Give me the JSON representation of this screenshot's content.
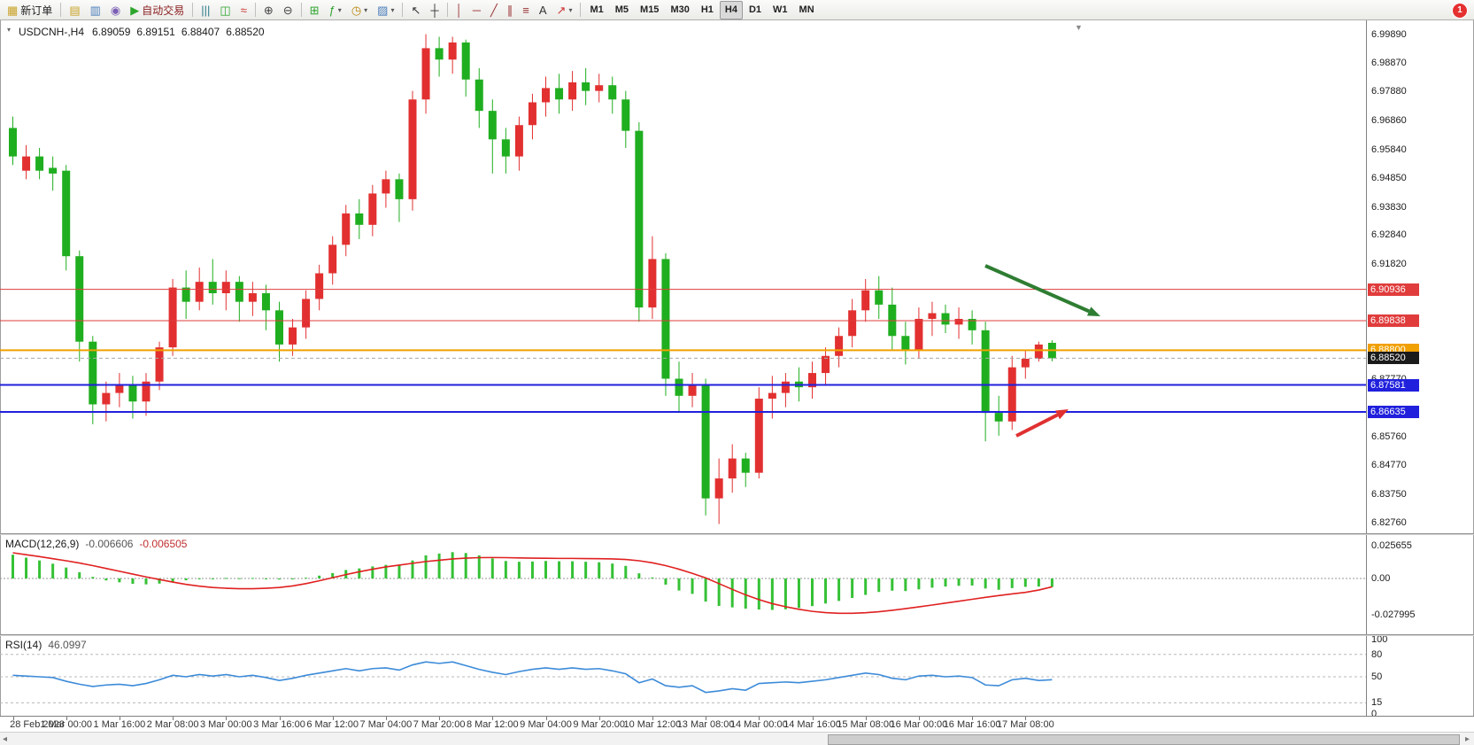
{
  "toolbar": {
    "items": [
      {
        "name": "new-order-button",
        "icon": "new-order-icon",
        "label": "新订单"
      },
      {
        "sep": true
      },
      {
        "name": "layouts-button",
        "icon": "layouts-icon"
      },
      {
        "name": "data-window-button",
        "icon": "data-window-icon"
      },
      {
        "name": "help-button",
        "icon": "help-icon"
      },
      {
        "name": "autotrading-button",
        "icon": "play-icon",
        "label": "自动交易",
        "label_color": "#8b2020"
      },
      {
        "sep": true
      },
      {
        "name": "bars-chart-button",
        "icon": "bars-chart-icon"
      },
      {
        "name": "candlestick-chart-button",
        "icon": "candlestick-chart-icon"
      },
      {
        "name": "line-chart-button",
        "icon": "line-chart-icon"
      },
      {
        "sep": true
      },
      {
        "name": "zoom-in-button",
        "icon": "zoom-in-icon"
      },
      {
        "name": "zoom-out-button",
        "icon": "zoom-out-icon"
      },
      {
        "sep": true
      },
      {
        "name": "tile-windows-button",
        "icon": "tile-windows-icon"
      },
      {
        "name": "indicators-button",
        "icon": "indicators-icon",
        "caret": true
      },
      {
        "name": "periods-button",
        "icon": "clock-icon",
        "caret": true
      },
      {
        "name": "templates-button",
        "icon": "template-icon",
        "caret": true
      },
      {
        "sep": true
      },
      {
        "name": "cursor-button",
        "icon": "cursor-icon"
      },
      {
        "name": "crosshair-button",
        "icon": "crosshair-icon"
      },
      {
        "sep": true
      },
      {
        "name": "vertical-line-button",
        "icon": "vertical-line-icon"
      },
      {
        "name": "horizontal-line-button",
        "icon": "horizontal-line-icon"
      },
      {
        "name": "trendline-button",
        "icon": "trendline-icon"
      },
      {
        "name": "channel-button",
        "icon": "channel-icon"
      },
      {
        "name": "fibonacci-button",
        "icon": "fibonacci-icon"
      },
      {
        "name": "text-button",
        "icon": "text-icon"
      },
      {
        "name": "arrows-button",
        "icon": "arrows-icon",
        "caret": true
      },
      {
        "sep": true
      },
      {
        "name": "timeframe-m1-button",
        "label": "M1",
        "tf": true
      },
      {
        "name": "timeframe-m5-button",
        "label": "M5",
        "tf": true
      },
      {
        "name": "timeframe-m15-button",
        "label": "M15",
        "tf": true
      },
      {
        "name": "timeframe-m30-button",
        "label": "M30",
        "tf": true
      },
      {
        "name": "timeframe-h1-button",
        "label": "H1",
        "tf": true
      },
      {
        "name": "timeframe-h4-button",
        "label": "H4",
        "tf": true,
        "active": true
      },
      {
        "name": "timeframe-d1-button",
        "label": "D1",
        "tf": true
      },
      {
        "name": "timeframe-w1-button",
        "label": "W1",
        "tf": true
      },
      {
        "name": "timeframe-mn-button",
        "label": "MN",
        "tf": true
      }
    ]
  },
  "chart": {
    "title": {
      "symbol": "USDCNH-,H4",
      "open": "6.89059",
      "high": "6.89151",
      "low": "6.88407",
      "close": "6.88520"
    },
    "annotations": [
      {
        "name": "green-down-arrow",
        "color": "#2e7d32",
        "from": [
          1113,
          300
        ],
        "to": [
          1243,
          357
        ]
      },
      {
        "name": "red-up-arrow",
        "color": "#e03030",
        "from": [
          1148,
          492
        ],
        "to": [
          1207,
          462
        ]
      }
    ],
    "colors": {
      "up_candle": "#e23030",
      "down_candle": "#1fae1f",
      "macd_histogram": "#35c135",
      "macd_signal": "#e02020",
      "rsi_line": "#3c8bd9"
    }
  },
  "macd": {
    "name": "MACD(12,26,9)",
    "value1": "-0.006606",
    "value2": "-0.006505"
  },
  "rsi": {
    "name": "RSI(14)",
    "value": "46.0997"
  },
  "notification": {
    "count": "1"
  },
  "chart_data": [
    {
      "type": "candlestick",
      "symbol": "USDCNH-",
      "timeframe": "H4",
      "ylim": [
        6.825,
        7.0022
      ],
      "y_ticks": [
        "6.99890",
        "6.98870",
        "6.97880",
        "6.96860",
        "6.95840",
        "6.94850",
        "6.93830",
        "6.92840",
        "6.91820",
        "6.90800",
        "6.87770",
        "6.85760",
        "6.84770",
        "6.83750",
        "6.82760"
      ],
      "levels": [
        {
          "price": 6.90936,
          "label": "6.90936",
          "color": "#e03c3c",
          "badge": "#e03c3c",
          "style": "solid",
          "width": 1
        },
        {
          "price": 6.89838,
          "label": "6.89838",
          "color": "#e03c3c",
          "badge": "#e03c3c",
          "style": "solid",
          "width": 1
        },
        {
          "price": 6.888,
          "label": "6.88800",
          "color": "#f0a000",
          "badge": "#f0a000",
          "style": "solid",
          "width": 2
        },
        {
          "price": 6.8852,
          "label": "6.88520",
          "color": "#aaaaaa",
          "badge": "#1a1a1a",
          "style": "dashed",
          "width": 1
        },
        {
          "price": 6.87581,
          "label": "6.87581",
          "color": "#2020dd",
          "badge": "#2020dd",
          "style": "solid",
          "width": 2
        },
        {
          "price": 6.86635,
          "label": "6.86635",
          "color": "#2020dd",
          "badge": "#2020dd",
          "style": "solid",
          "width": 2
        }
      ],
      "x_labels": [
        {
          "index": 0,
          "label": "28 Feb 2023"
        },
        {
          "index": 4,
          "label": "1 Mar 00:00"
        },
        {
          "index": 8,
          "label": "1 Mar 16:00"
        },
        {
          "index": 12,
          "label": "2 Mar 08:00"
        },
        {
          "index": 16,
          "label": "3 Mar 00:00"
        },
        {
          "index": 20,
          "label": "3 Mar 16:00"
        },
        {
          "index": 24,
          "label": "6 Mar 12:00"
        },
        {
          "index": 28,
          "label": "7 Mar 04:00"
        },
        {
          "index": 32,
          "label": "7 Mar 20:00"
        },
        {
          "index": 36,
          "label": "8 Mar 12:00"
        },
        {
          "index": 40,
          "label": "9 Mar 04:00"
        },
        {
          "index": 44,
          "label": "9 Mar 20:00"
        },
        {
          "index": 48,
          "label": "10 Mar 12:00"
        },
        {
          "index": 52,
          "label": "13 Mar 08:00"
        },
        {
          "index": 56,
          "label": "14 Mar 00:00"
        },
        {
          "index": 60,
          "label": "14 Mar 16:00"
        },
        {
          "index": 64,
          "label": "15 Mar 08:00"
        },
        {
          "index": 68,
          "label": "16 Mar 00:00"
        },
        {
          "index": 72,
          "label": "16 Mar 16:00"
        },
        {
          "index": 76,
          "label": "17 Mar 08:00"
        }
      ],
      "candles": [
        [
          6.966,
          6.97,
          6.953,
          6.956
        ],
        [
          6.951,
          6.96,
          6.948,
          6.956
        ],
        [
          6.956,
          6.959,
          6.948,
          6.951
        ],
        [
          6.952,
          6.956,
          6.944,
          6.95
        ],
        [
          6.951,
          6.953,
          6.916,
          6.921
        ],
        [
          6.921,
          6.923,
          6.884,
          6.891
        ],
        [
          6.891,
          6.893,
          6.862,
          6.869
        ],
        [
          6.869,
          6.877,
          6.863,
          6.873
        ],
        [
          6.873,
          6.88,
          6.868,
          6.876
        ],
        [
          6.876,
          6.879,
          6.864,
          6.87
        ],
        [
          6.87,
          6.88,
          6.865,
          6.877
        ],
        [
          6.877,
          6.891,
          6.874,
          6.889
        ],
        [
          6.889,
          6.913,
          6.886,
          6.91
        ],
        [
          6.91,
          6.916,
          6.899,
          6.905
        ],
        [
          6.905,
          6.917,
          6.902,
          6.912
        ],
        [
          6.912,
          6.92,
          6.904,
          6.908
        ],
        [
          6.908,
          6.916,
          6.902,
          6.912
        ],
        [
          6.912,
          6.914,
          6.898,
          6.905
        ],
        [
          6.905,
          6.912,
          6.9,
          6.908
        ],
        [
          6.908,
          6.911,
          6.895,
          6.902
        ],
        [
          6.902,
          6.905,
          6.884,
          6.89
        ],
        [
          6.89,
          6.899,
          6.886,
          6.896
        ],
        [
          6.896,
          6.909,
          6.892,
          6.906
        ],
        [
          6.906,
          6.918,
          6.902,
          6.915
        ],
        [
          6.915,
          6.928,
          6.911,
          6.925
        ],
        [
          6.925,
          6.939,
          6.921,
          6.936
        ],
        [
          6.936,
          6.941,
          6.927,
          6.932
        ],
        [
          6.932,
          6.946,
          6.928,
          6.943
        ],
        [
          6.943,
          6.951,
          6.938,
          6.948
        ],
        [
          6.948,
          6.95,
          6.933,
          6.941
        ],
        [
          6.941,
          6.979,
          6.937,
          6.976
        ],
        [
          6.976,
          6.9989,
          6.971,
          6.994
        ],
        [
          6.994,
          6.998,
          6.984,
          6.99
        ],
        [
          6.99,
          6.998,
          6.985,
          6.996
        ],
        [
          6.996,
          6.997,
          6.977,
          6.983
        ],
        [
          6.983,
          6.987,
          6.966,
          6.972
        ],
        [
          6.972,
          6.976,
          6.95,
          6.962
        ],
        [
          6.962,
          6.966,
          6.95,
          6.956
        ],
        [
          6.956,
          6.97,
          6.951,
          6.967
        ],
        [
          6.967,
          6.978,
          6.962,
          6.975
        ],
        [
          6.975,
          6.984,
          6.97,
          6.98
        ],
        [
          6.98,
          6.985,
          6.971,
          6.976
        ],
        [
          6.976,
          6.986,
          6.972,
          6.982
        ],
        [
          6.982,
          6.987,
          6.974,
          6.979
        ],
        [
          6.979,
          6.985,
          6.975,
          6.981
        ],
        [
          6.981,
          6.984,
          6.971,
          6.976
        ],
        [
          6.976,
          6.979,
          6.959,
          6.965
        ],
        [
          6.965,
          6.968,
          6.898,
          6.903
        ],
        [
          6.903,
          6.928,
          6.899,
          6.92
        ],
        [
          6.92,
          6.922,
          6.872,
          6.878
        ],
        [
          6.878,
          6.884,
          6.866,
          6.872
        ],
        [
          6.872,
          6.88,
          6.868,
          6.876
        ],
        [
          6.876,
          6.878,
          6.83,
          6.836
        ],
        [
          6.836,
          6.85,
          6.827,
          6.843
        ],
        [
          6.843,
          6.855,
          6.838,
          6.85
        ],
        [
          6.85,
          6.852,
          6.84,
          6.845
        ],
        [
          6.845,
          6.875,
          6.843,
          6.871
        ],
        [
          6.871,
          6.879,
          6.864,
          6.873
        ],
        [
          6.873,
          6.88,
          6.868,
          6.877
        ],
        [
          6.877,
          6.882,
          6.87,
          6.875
        ],
        [
          6.875,
          6.884,
          6.871,
          6.88
        ],
        [
          6.88,
          6.889,
          6.876,
          6.886
        ],
        [
          6.886,
          6.896,
          6.882,
          6.893
        ],
        [
          6.893,
          6.906,
          6.889,
          6.902
        ],
        [
          6.902,
          6.913,
          6.898,
          6.909
        ],
        [
          6.909,
          6.914,
          6.899,
          6.904
        ],
        [
          6.904,
          6.91,
          6.888,
          6.893
        ],
        [
          6.893,
          6.898,
          6.883,
          6.888
        ],
        [
          6.888,
          6.903,
          6.885,
          6.899
        ],
        [
          6.899,
          6.905,
          6.893,
          6.901
        ],
        [
          6.901,
          6.904,
          6.894,
          6.897
        ],
        [
          6.897,
          6.903,
          6.892,
          6.899
        ],
        [
          6.899,
          6.902,
          6.89,
          6.895
        ],
        [
          6.895,
          6.898,
          6.856,
          6.866
        ],
        [
          6.866,
          6.872,
          6.858,
          6.863
        ],
        [
          6.863,
          6.886,
          6.86,
          6.882
        ],
        [
          6.882,
          6.888,
          6.878,
          6.885
        ],
        [
          6.885,
          6.891,
          6.884,
          6.89
        ],
        [
          6.8906,
          6.8915,
          6.8841,
          6.8852
        ]
      ]
    },
    {
      "type": "bar+line",
      "name": "MACD(12,26,9)",
      "y_ticks": [
        "0.025655",
        "0.00",
        "-0.027995"
      ],
      "histogram": [
        0.0185,
        0.0162,
        0.014,
        0.0115,
        0.0085,
        0.0048,
        0.0012,
        -0.0015,
        -0.003,
        -0.0042,
        -0.0046,
        -0.004,
        -0.0024,
        -0.0014,
        -0.0004,
        -0.0002,
        0.0004,
        0.0002,
        0.0004,
        0.0,
        -0.0008,
        -0.0006,
        0.0006,
        0.0022,
        0.0042,
        0.0066,
        0.0078,
        0.0094,
        0.0106,
        0.0106,
        0.014,
        0.018,
        0.0194,
        0.0205,
        0.0198,
        0.018,
        0.0156,
        0.0136,
        0.013,
        0.0132,
        0.0136,
        0.0134,
        0.0134,
        0.013,
        0.0126,
        0.0116,
        0.0098,
        0.004,
        0.0008,
        -0.0048,
        -0.0094,
        -0.012,
        -0.018,
        -0.0214,
        -0.0225,
        -0.0235,
        -0.0242,
        -0.0245,
        -0.024,
        -0.023,
        -0.0215,
        -0.0195,
        -0.0175,
        -0.0152,
        -0.0128,
        -0.0105,
        -0.0095,
        -0.0098,
        -0.0085,
        -0.0072,
        -0.0063,
        -0.0057,
        -0.0055,
        -0.0078,
        -0.0088,
        -0.0075,
        -0.0065,
        -0.0063,
        -0.0066
      ],
      "signal": [
        0.02,
        0.0185,
        0.017,
        0.0154,
        0.0138,
        0.012,
        0.01,
        0.0078,
        0.0056,
        0.0034,
        0.0012,
        -0.0008,
        -0.0028,
        -0.0046,
        -0.006,
        -0.007,
        -0.0076,
        -0.008,
        -0.008,
        -0.0076,
        -0.007,
        -0.0058,
        -0.004,
        -0.0018,
        0.0006,
        0.003,
        0.0052,
        0.0072,
        0.009,
        0.0104,
        0.0118,
        0.0132,
        0.0142,
        0.0152,
        0.0158,
        0.0162,
        0.0163,
        0.0162,
        0.016,
        0.0158,
        0.0157,
        0.0156,
        0.0156,
        0.0155,
        0.0154,
        0.0152,
        0.0148,
        0.0138,
        0.0122,
        0.01,
        0.0072,
        0.004,
        0.0004,
        -0.004,
        -0.0085,
        -0.0128,
        -0.0165,
        -0.0196,
        -0.022,
        -0.024,
        -0.0256,
        -0.0266,
        -0.0271,
        -0.0271,
        -0.0267,
        -0.0259,
        -0.0248,
        -0.0235,
        -0.0221,
        -0.0207,
        -0.0192,
        -0.0177,
        -0.0162,
        -0.0147,
        -0.0133,
        -0.012,
        -0.0108,
        -0.009,
        -0.0065
      ]
    },
    {
      "type": "line",
      "name": "RSI(14)",
      "y_ticks": [
        "100",
        "80",
        "50",
        "15",
        "0"
      ],
      "levels": [
        80,
        50,
        15
      ],
      "values": [
        52,
        51,
        50,
        49,
        44,
        40,
        37,
        39,
        40,
        38,
        41,
        46,
        52,
        50,
        53,
        51,
        53,
        50,
        52,
        49,
        45,
        48,
        52,
        55,
        58,
        61,
        58,
        61,
        62,
        59,
        66,
        70,
        68,
        70,
        65,
        60,
        56,
        53,
        57,
        60,
        62,
        60,
        62,
        60,
        61,
        58,
        54,
        42,
        47,
        38,
        36,
        38,
        29,
        31,
        34,
        32,
        41,
        42,
        43,
        42,
        44,
        46,
        49,
        52,
        55,
        53,
        48,
        46,
        51,
        52,
        50,
        51,
        49,
        39,
        38,
        46,
        48,
        45,
        46.0997
      ]
    }
  ]
}
